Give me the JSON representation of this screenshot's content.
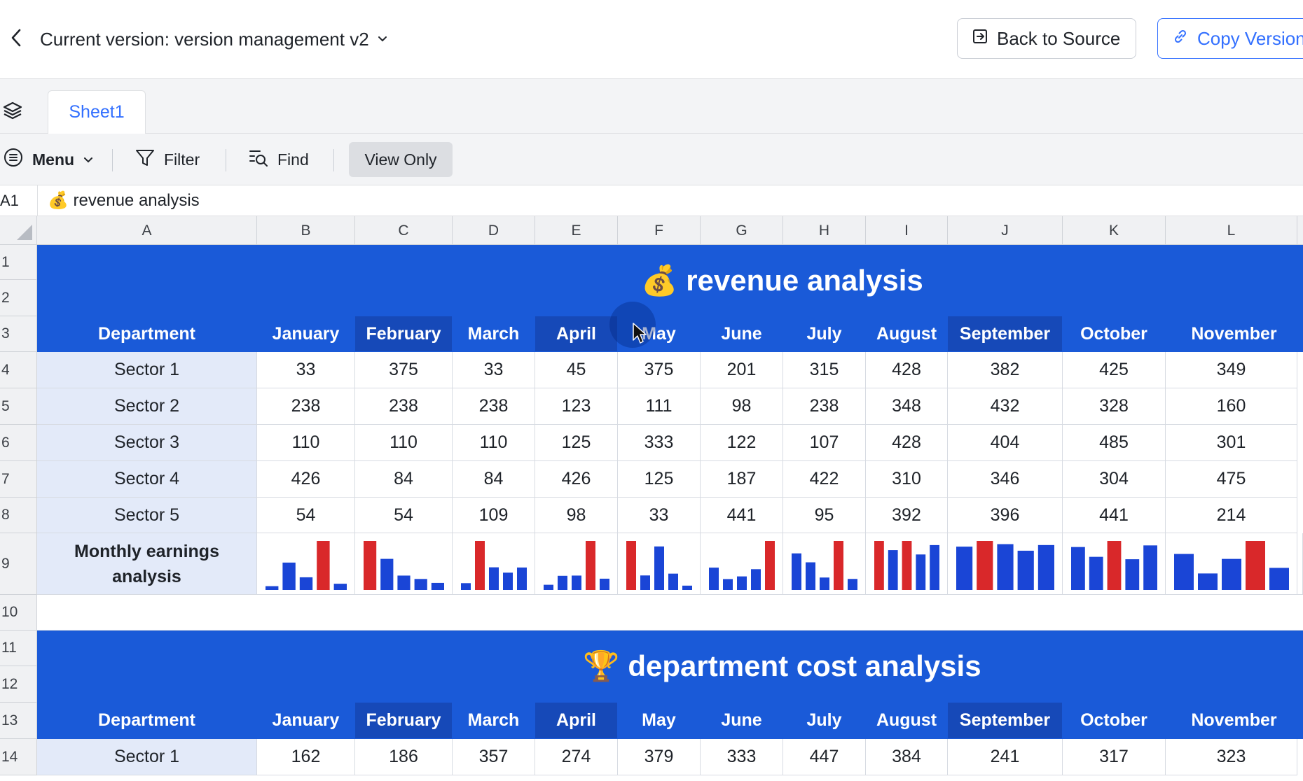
{
  "header": {
    "version_title": "Current version: version management v2",
    "back_to_source_label": "Back to Source",
    "copy_version_label": "Copy Version"
  },
  "tabs": {
    "sheet_tab_label": "Sheet1"
  },
  "toolbar": {
    "menu_label": "Menu",
    "filter_label": "Filter",
    "find_label": "Find",
    "view_only_label": "View Only"
  },
  "formula_bar": {
    "cell_ref": "A1",
    "content": "💰 revenue analysis"
  },
  "grid": {
    "columns": [
      "A",
      "B",
      "C",
      "D",
      "E",
      "F",
      "G",
      "H",
      "I",
      "J",
      "K",
      "L"
    ],
    "row_numbers": [
      "1",
      "2",
      "3",
      "4",
      "5",
      "6",
      "7",
      "8",
      "9",
      "10",
      "11",
      "12",
      "13",
      "14"
    ]
  },
  "revenue_table": {
    "title": "💰 revenue analysis",
    "header": [
      "Department",
      "January",
      "February",
      "March",
      "April",
      "May",
      "June",
      "July",
      "August",
      "September",
      "October",
      "November"
    ],
    "rows": [
      {
        "dept": "Sector 1",
        "values": [
          "33",
          "375",
          "33",
          "45",
          "375",
          "201",
          "315",
          "428",
          "382",
          "425",
          "349"
        ]
      },
      {
        "dept": "Sector 2",
        "values": [
          "238",
          "238",
          "238",
          "123",
          "111",
          "98",
          "238",
          "348",
          "432",
          "328",
          "160"
        ]
      },
      {
        "dept": "Sector 3",
        "values": [
          "110",
          "110",
          "110",
          "125",
          "333",
          "122",
          "107",
          "428",
          "404",
          "485",
          "301"
        ]
      },
      {
        "dept": "Sector 4",
        "values": [
          "426",
          "84",
          "84",
          "426",
          "125",
          "187",
          "422",
          "310",
          "346",
          "304",
          "475"
        ]
      },
      {
        "dept": "Sector 5",
        "values": [
          "54",
          "54",
          "109",
          "98",
          "33",
          "441",
          "95",
          "392",
          "396",
          "441",
          "214"
        ]
      }
    ],
    "summary_label": "Monthly earnings analysis"
  },
  "cost_table": {
    "title": "🏆 department cost analysis",
    "header": [
      "Department",
      "January",
      "February",
      "March",
      "April",
      "May",
      "June",
      "July",
      "August",
      "September",
      "October",
      "November"
    ],
    "rows": [
      {
        "dept": "Sector 1",
        "values": [
          "162",
          "186",
          "357",
          "274",
          "379",
          "333",
          "447",
          "384",
          "241",
          "317",
          "323"
        ]
      }
    ]
  },
  "sparkline_colors": {
    "bar": "#1a45d6",
    "highlight": "#d9282a"
  }
}
